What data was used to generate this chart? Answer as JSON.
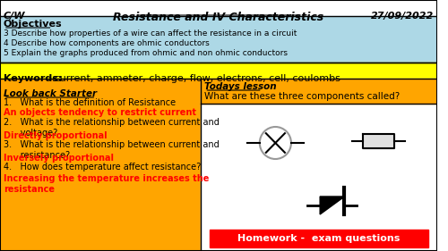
{
  "title_left": "C/W",
  "title_center": "Resistance and IV Characteristics",
  "title_right": "27/09/2022",
  "title_underline": true,
  "objectives_title": "Objectives",
  "objectives": [
    "3 Describe how properties of a wire can affect the resistance in a circuit",
    "4 Describe how components are ohmic conductors",
    "5 Explain the graphs produced from ohmic and non ohmic conductors"
  ],
  "keywords_label": "Keywords:",
  "keywords_text": " current, ammeter, charge, flow, electrons, cell, coulombs",
  "keywords_bg": "#FFFF00",
  "objectives_bg": "#ADD8E6",
  "starter_title": "Look back Starter",
  "starter_bg": "#FFA500",
  "starter_questions": [
    "1.   What is the definition of Resistance",
    "2.   What is the relationship between current and\n      voltage?",
    "3.   What is the relationship between current and\n      resistance?",
    "4.   How does temperature affect resistance?"
  ],
  "starter_answers": [
    "An objects tendency to restrict current",
    "Directly proportional",
    "Inversely proportional",
    "Increasing the temperature increases the\nresistance"
  ],
  "todays_title": "Todays lesson",
  "todays_question": "What are these three components called?",
  "todays_bg": "#FFA500",
  "right_panel_bg": "#FFA500",
  "homework_text": "Homework -  exam questions",
  "homework_bg": "#FF0000",
  "answer_color": "#FF0000",
  "fig_bg": "#FFFFFF"
}
